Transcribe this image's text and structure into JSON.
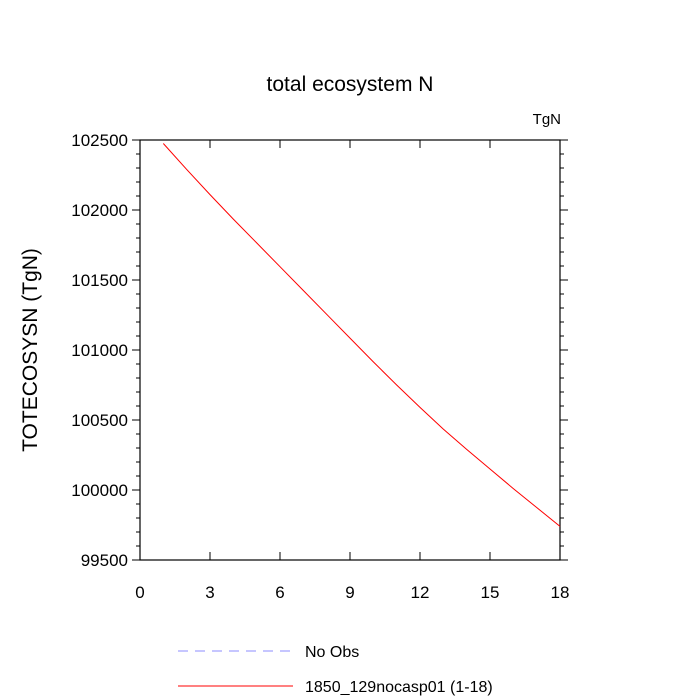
{
  "chart_data": {
    "type": "line",
    "title": "total ecosystem N",
    "units_label": "TgN",
    "xlabel": "",
    "ylabel": "TOTECOSYSN  (TgN)",
    "xlim": [
      0,
      18
    ],
    "ylim": [
      99500,
      102500
    ],
    "x_ticks": [
      0,
      3,
      6,
      9,
      12,
      15,
      18
    ],
    "x_tick_labels": [
      "0",
      "3",
      "6",
      "9",
      "12",
      "15",
      "18"
    ],
    "y_ticks": [
      99500,
      100000,
      100500,
      101000,
      101500,
      102000,
      102500
    ],
    "y_tick_labels": [
      "99500",
      "100000",
      "100500",
      "101000",
      "101500",
      "102000",
      "102500"
    ],
    "grid": false,
    "legend_position": "bottom",
    "series": [
      {
        "name": "1850_129nocasp01 (1-18)",
        "color": "#ff0000",
        "dash": "solid",
        "x": [
          1,
          2,
          3,
          4,
          5,
          6,
          7,
          8,
          9,
          10,
          11,
          12,
          13,
          14,
          15,
          16,
          17,
          18
        ],
        "values": [
          102475,
          102290,
          102110,
          101935,
          101765,
          101595,
          101425,
          101255,
          101085,
          100915,
          100750,
          100590,
          100435,
          100290,
          100150,
          100010,
          99875,
          99740
        ]
      }
    ],
    "legend": [
      {
        "label": "No Obs",
        "color": "#8c8cff",
        "dash": "dashed"
      },
      {
        "label": "1850_129nocasp01 (1-18)",
        "color": "#ff0000",
        "dash": "solid"
      }
    ]
  }
}
